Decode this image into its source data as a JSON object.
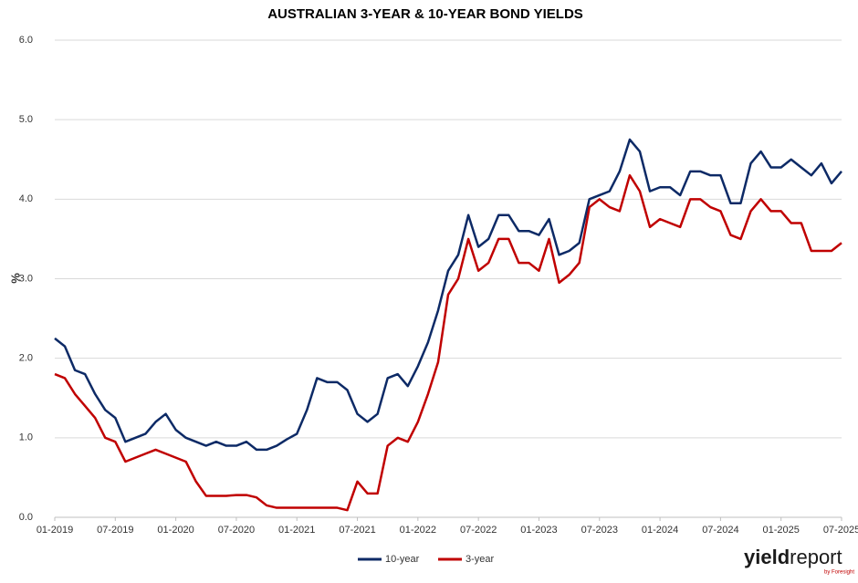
{
  "chart_data": {
    "type": "line",
    "title": "AUSTRALIAN 3-YEAR & 10-YEAR BOND YIELDS",
    "y_label": "%",
    "x": [
      "01-2019",
      "02-2019",
      "03-2019",
      "04-2019",
      "05-2019",
      "06-2019",
      "07-2019",
      "08-2019",
      "09-2019",
      "10-2019",
      "11-2019",
      "12-2019",
      "01-2020",
      "02-2020",
      "03-2020",
      "04-2020",
      "05-2020",
      "06-2020",
      "07-2020",
      "08-2020",
      "09-2020",
      "10-2020",
      "11-2020",
      "12-2020",
      "01-2021",
      "02-2021",
      "03-2021",
      "04-2021",
      "05-2021",
      "06-2021",
      "07-2021",
      "08-2021",
      "09-2021",
      "10-2021",
      "11-2021",
      "12-2021",
      "01-2022",
      "02-2022",
      "03-2022",
      "04-2022",
      "05-2022",
      "06-2022",
      "07-2022",
      "08-2022",
      "09-2022",
      "10-2022",
      "11-2022",
      "12-2022",
      "01-2023",
      "02-2023",
      "03-2023",
      "04-2023",
      "05-2023",
      "06-2023",
      "07-2023",
      "08-2023",
      "09-2023",
      "10-2023",
      "11-2023",
      "12-2023",
      "01-2024",
      "02-2024",
      "03-2024",
      "04-2024",
      "05-2024",
      "06-2024",
      "07-2024",
      "08-2024",
      "09-2024",
      "10-2024",
      "11-2024",
      "12-2024",
      "01-2025",
      "02-2025",
      "03-2025",
      "04-2025",
      "05-2025",
      "06-2025",
      "07-2025"
    ],
    "xticks": [
      "01-2019",
      "07-2019",
      "01-2020",
      "07-2020",
      "01-2021",
      "07-2021",
      "01-2022",
      "07-2022",
      "01-2023",
      "07-2023",
      "01-2024",
      "07-2024",
      "01-2025",
      "07-2025"
    ],
    "ylim": [
      0,
      6
    ],
    "yticks": [
      {
        "value": 0,
        "label": "0.0"
      },
      {
        "value": 1,
        "label": "1.0"
      },
      {
        "value": 2,
        "label": "2.0"
      },
      {
        "value": 3,
        "label": "3.0"
      },
      {
        "value": 4,
        "label": "4.0"
      },
      {
        "value": 5,
        "label": "5.0"
      },
      {
        "value": 6,
        "label": "6.0"
      }
    ],
    "grid": true,
    "legend": "bottom",
    "series": [
      {
        "name": "10-year",
        "color": "#0d2a66",
        "values": [
          2.25,
          2.15,
          1.85,
          1.8,
          1.55,
          1.35,
          1.25,
          0.95,
          1.0,
          1.05,
          1.2,
          1.3,
          1.1,
          1.0,
          0.95,
          0.9,
          0.95,
          0.9,
          0.9,
          0.95,
          0.85,
          0.85,
          0.9,
          0.98,
          1.05,
          1.35,
          1.75,
          1.7,
          1.7,
          1.6,
          1.3,
          1.2,
          1.3,
          1.75,
          1.8,
          1.65,
          1.9,
          2.2,
          2.6,
          3.1,
          3.3,
          3.8,
          3.4,
          3.5,
          3.8,
          3.8,
          3.6,
          3.6,
          3.55,
          3.75,
          3.3,
          3.35,
          3.45,
          4.0,
          4.05,
          4.1,
          4.35,
          4.75,
          4.6,
          4.1,
          4.15,
          4.15,
          4.05,
          4.35,
          4.35,
          4.3,
          4.3,
          3.95,
          3.95,
          4.45,
          4.6,
          4.4,
          4.4,
          4.5,
          4.4,
          4.3,
          4.45,
          4.2,
          4.35
        ]
      },
      {
        "name": "3-year",
        "color": "#c00000",
        "values": [
          1.8,
          1.75,
          1.55,
          1.4,
          1.25,
          1.0,
          0.95,
          0.7,
          0.75,
          0.8,
          0.85,
          0.8,
          0.75,
          0.7,
          0.45,
          0.27,
          0.27,
          0.27,
          0.28,
          0.28,
          0.25,
          0.15,
          0.12,
          0.12,
          0.12,
          0.12,
          0.12,
          0.12,
          0.12,
          0.09,
          0.45,
          0.3,
          0.3,
          0.9,
          1.0,
          0.95,
          1.2,
          1.55,
          1.95,
          2.8,
          3.0,
          3.5,
          3.1,
          3.2,
          3.5,
          3.5,
          3.2,
          3.2,
          3.1,
          3.5,
          2.95,
          3.05,
          3.2,
          3.9,
          4.0,
          3.9,
          3.85,
          4.3,
          4.1,
          3.65,
          3.75,
          3.7,
          3.65,
          4.0,
          4.0,
          3.9,
          3.85,
          3.55,
          3.5,
          3.85,
          4.0,
          3.85,
          3.85,
          3.7,
          3.7,
          3.35,
          3.35,
          3.35,
          3.45
        ]
      }
    ]
  },
  "logo": {
    "brand_a": "yield",
    "brand_b": "report",
    "byline": "by Foresight"
  }
}
